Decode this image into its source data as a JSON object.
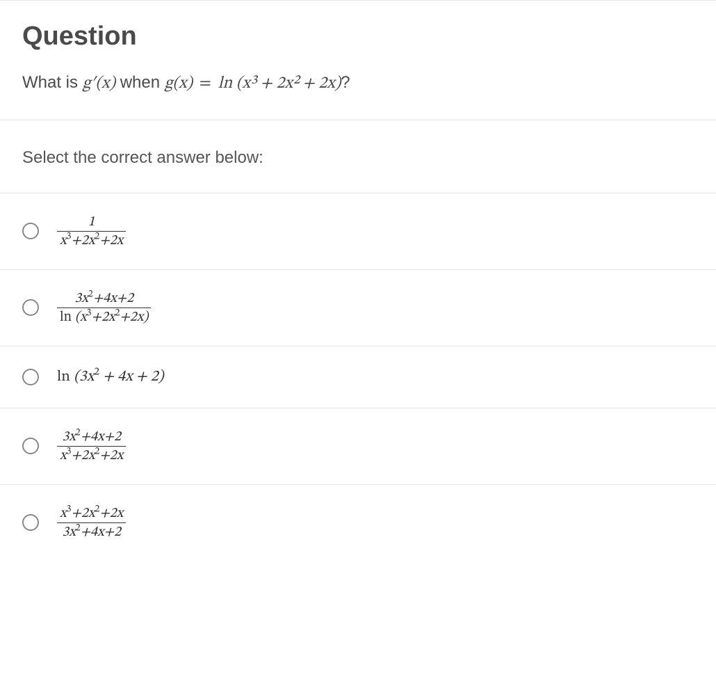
{
  "colors": {
    "text": "#4a4a4a",
    "border": "#e5e5e5",
    "radio_border": "#888888",
    "background": "#ffffff"
  },
  "typography": {
    "title_fontsize": 38,
    "body_fontsize": 24,
    "option_fontsize": 22
  },
  "header": {
    "title": "Question",
    "prompt_prefix": "What is ",
    "prompt_gprime": "g′(x)",
    "prompt_mid": " when ",
    "prompt_g": "g(x)",
    "prompt_eq": " = ",
    "prompt_fn": "ln ",
    "prompt_arg": "(x³ + 2x² + 2x)",
    "prompt_suffix": "?"
  },
  "instruction": "Select the correct answer below:",
  "options": [
    {
      "id": "opt-1",
      "type": "fraction",
      "num": "1",
      "den_html": "x<sup>3</sup>+2x<sup>2</sup>+2x"
    },
    {
      "id": "opt-2",
      "type": "fraction",
      "num_html": "3x<sup>2</sup>+4x+2",
      "den_prefix": "ln ",
      "den_html": "(x<sup>3</sup>+2x<sup>2</sup>+2x)"
    },
    {
      "id": "opt-3",
      "type": "inline",
      "prefix": "ln ",
      "body_html": "(3x<sup>2</sup> + 4x + 2)"
    },
    {
      "id": "opt-4",
      "type": "fraction",
      "num_html": "3x<sup>2</sup>+4x+2",
      "den_html": "x<sup>3</sup>+2x<sup>2</sup>+2x"
    },
    {
      "id": "opt-5",
      "type": "fraction",
      "num_html": "x<sup>3</sup>+2x<sup>2</sup>+2x",
      "den_html": "3x<sup>2</sup>+4x+2"
    }
  ]
}
